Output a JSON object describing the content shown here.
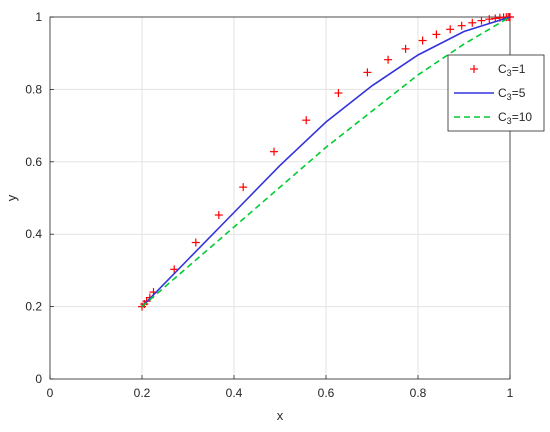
{
  "chart_data": {
    "type": "line",
    "xlabel": "x",
    "ylabel": "y",
    "xlim": [
      0,
      1
    ],
    "ylim": [
      0,
      1
    ],
    "xticks": [
      0,
      0.2,
      0.4,
      0.6,
      0.8,
      1
    ],
    "yticks": [
      0,
      0.2,
      0.4,
      0.6,
      0.8,
      1
    ],
    "xtick_labels": [
      "0",
      "0.2",
      "0.4",
      "0.6",
      "0.8",
      "1"
    ],
    "ytick_labels": [
      "0",
      "0.2",
      "0.4",
      "0.6",
      "0.8",
      "1"
    ],
    "grid": true,
    "legend_position": "top-right",
    "series": [
      {
        "name_main": "C",
        "name_sub": "3",
        "name_suffix": "=1",
        "style": "markers-plus",
        "color": "#ff0000",
        "x": [
          0.2,
          0.205,
          0.21,
          0.217,
          0.225,
          0.27,
          0.317,
          0.367,
          0.42,
          0.487,
          0.557,
          0.627,
          0.69,
          0.735,
          0.773,
          0.81,
          0.84,
          0.87,
          0.895,
          0.918,
          0.938,
          0.955,
          0.968,
          0.978,
          0.986,
          0.992,
          0.996,
          0.999,
          1.0
        ],
        "y": [
          0.2,
          0.207,
          0.215,
          0.225,
          0.24,
          0.303,
          0.377,
          0.453,
          0.53,
          0.628,
          0.715,
          0.79,
          0.847,
          0.882,
          0.912,
          0.935,
          0.952,
          0.966,
          0.976,
          0.984,
          0.99,
          0.994,
          0.996,
          0.998,
          0.999,
          0.9995,
          1.0,
          1.0,
          1.0
        ]
      },
      {
        "name_main": "C",
        "name_sub": "3",
        "name_suffix": "=5",
        "style": "solid",
        "color": "#3333dd",
        "x": [
          0.2,
          0.3,
          0.4,
          0.5,
          0.6,
          0.7,
          0.8,
          0.9,
          1.0
        ],
        "y": [
          0.2,
          0.33,
          0.46,
          0.59,
          0.71,
          0.81,
          0.895,
          0.96,
          1.0
        ]
      },
      {
        "name_main": "C",
        "name_sub": "3",
        "name_suffix": "=10",
        "style": "dashed",
        "color": "#00cc33",
        "x": [
          0.2,
          0.3,
          0.4,
          0.5,
          0.6,
          0.7,
          0.8,
          0.9,
          1.0
        ],
        "y": [
          0.2,
          0.31,
          0.42,
          0.53,
          0.64,
          0.74,
          0.84,
          0.925,
          1.0
        ]
      }
    ]
  }
}
